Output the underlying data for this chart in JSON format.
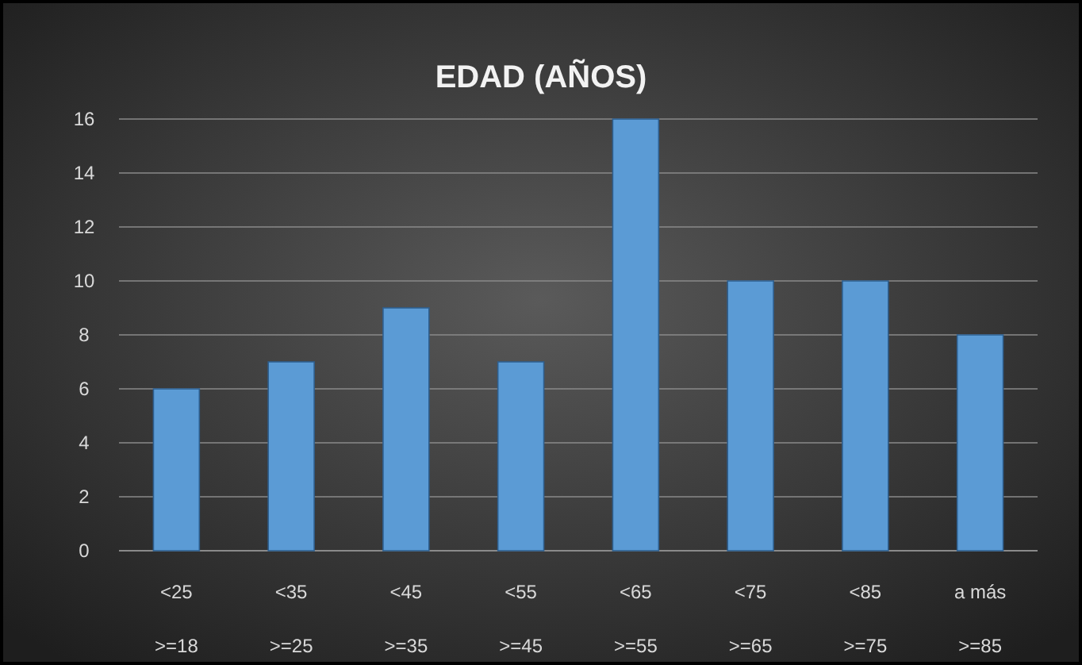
{
  "chart_data": {
    "type": "bar",
    "title": "EDAD (AÑOS)",
    "categories": [
      "<25\n>=18",
      "<35\n>=25",
      "<45\n>=35",
      "<55\n>=45",
      "<65\n>=55",
      "<75\n>=65",
      "<85\n>=75",
      "a más\n>=85"
    ],
    "values": [
      6,
      7,
      9,
      7,
      16,
      10,
      10,
      8
    ],
    "color": "#5b9bd5",
    "ylim": [
      0,
      16
    ],
    "yticks": [
      0,
      2,
      4,
      6,
      8,
      10,
      12,
      14,
      16
    ],
    "grid": "y"
  }
}
